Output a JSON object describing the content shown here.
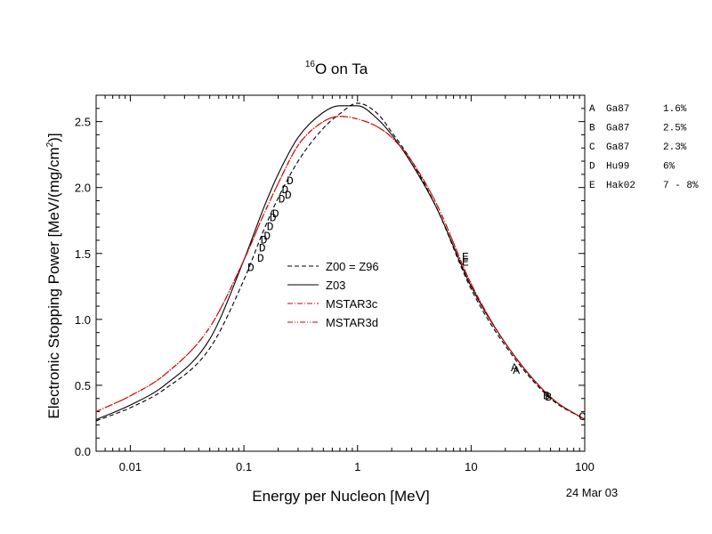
{
  "chart_data": {
    "type": "line",
    "title": {
      "sup": "16",
      "main": "O on Ta"
    },
    "xlabel": "Energy per Nucleon [MeV]",
    "ylabel": {
      "pre": "Electronic Stopping Power [MeV/(mg/cm",
      "sup": "2",
      "post": ")]"
    },
    "x_scale": "log",
    "xlim": [
      0.005,
      100
    ],
    "ylim": [
      0.0,
      2.7
    ],
    "x_ticks": [
      {
        "value": 0.01,
        "label": "0.01"
      },
      {
        "value": 0.1,
        "label": "0.1"
      },
      {
        "value": 1,
        "label": "1"
      },
      {
        "value": 10,
        "label": "10"
      },
      {
        "value": 100,
        "label": "100"
      }
    ],
    "y_ticks": [
      {
        "value": 0.0,
        "label": "0.0"
      },
      {
        "value": 0.5,
        "label": "0.5"
      },
      {
        "value": 1.0,
        "label": "1.0"
      },
      {
        "value": 1.5,
        "label": "1.5"
      },
      {
        "value": 2.0,
        "label": "2.0"
      },
      {
        "value": 2.5,
        "label": "2.5"
      }
    ],
    "date_label": "24 Mar 03",
    "legend": {
      "placement": "center-left",
      "entries": [
        {
          "label": "Z00 = Z96",
          "color": "#000000",
          "dash": "dashed"
        },
        {
          "label": "Z03",
          "color": "#000000",
          "dash": "solid"
        },
        {
          "label": "MSTAR3c",
          "color": "#cc0000",
          "dash": "dash-dot"
        },
        {
          "label": "MSTAR3d",
          "color": "#cc0000",
          "dash": "dash-dot-dot"
        }
      ]
    },
    "series": [
      {
        "name": "Z00 = Z96",
        "color": "#000000",
        "dash": "dashed",
        "x": [
          0.005,
          0.01,
          0.02,
          0.05,
          0.1,
          0.15,
          0.2,
          0.3,
          0.5,
          0.7,
          1.0,
          1.5,
          2,
          3,
          5,
          10,
          20,
          50,
          100
        ],
        "y": [
          0.23,
          0.33,
          0.47,
          0.78,
          1.3,
          1.68,
          1.92,
          2.2,
          2.45,
          2.56,
          2.64,
          2.56,
          2.42,
          2.2,
          1.84,
          1.23,
          0.8,
          0.4,
          0.24
        ]
      },
      {
        "name": "Z03",
        "color": "#000000",
        "dash": "solid",
        "x": [
          0.005,
          0.01,
          0.02,
          0.05,
          0.1,
          0.15,
          0.2,
          0.3,
          0.5,
          0.7,
          1.0,
          1.5,
          2,
          3,
          5,
          10,
          20,
          50,
          100
        ],
        "y": [
          0.24,
          0.35,
          0.5,
          0.85,
          1.45,
          1.85,
          2.1,
          2.38,
          2.57,
          2.62,
          2.62,
          2.52,
          2.4,
          2.18,
          1.84,
          1.25,
          0.82,
          0.41,
          0.24
        ]
      },
      {
        "name": "MSTAR3c",
        "color": "#cc0000",
        "dash": "dash-dot",
        "x": [
          0.005,
          0.01,
          0.02,
          0.05,
          0.1,
          0.15,
          0.2,
          0.3,
          0.5,
          0.7,
          1.0,
          1.5,
          2,
          3,
          5,
          10,
          20,
          50,
          100
        ],
        "y": [
          0.3,
          0.42,
          0.58,
          0.94,
          1.45,
          1.8,
          2.03,
          2.32,
          2.5,
          2.54,
          2.52,
          2.46,
          2.38,
          2.2,
          1.87,
          1.27,
          0.82,
          0.41,
          0.24
        ]
      },
      {
        "name": "MSTAR3d",
        "color": "#cc0000",
        "dash": "dash-dot-dot",
        "x": [
          0.005,
          0.01,
          0.02,
          0.05,
          0.1,
          0.15,
          0.2,
          0.3,
          0.5,
          0.7,
          1.0,
          1.5,
          2,
          3,
          5,
          10,
          20,
          50,
          100
        ],
        "y": [
          0.3,
          0.42,
          0.58,
          0.94,
          1.45,
          1.8,
          2.03,
          2.32,
          2.5,
          2.54,
          2.52,
          2.46,
          2.38,
          2.2,
          1.87,
          1.27,
          0.82,
          0.41,
          0.24
        ]
      }
    ],
    "points": [
      {
        "letter": "A",
        "x": 24.0,
        "y": 0.64
      },
      {
        "letter": "A",
        "x": 25.0,
        "y": 0.62
      },
      {
        "letter": "B",
        "x": 46.0,
        "y": 0.43
      },
      {
        "letter": "B",
        "x": 48.0,
        "y": 0.42
      },
      {
        "letter": "C",
        "x": 95.0,
        "y": 0.27
      },
      {
        "letter": "D",
        "x": 0.115,
        "y": 1.4
      },
      {
        "letter": "D",
        "x": 0.14,
        "y": 1.47
      },
      {
        "letter": "D",
        "x": 0.145,
        "y": 1.55
      },
      {
        "letter": "D",
        "x": 0.15,
        "y": 1.61
      },
      {
        "letter": "D",
        "x": 0.16,
        "y": 1.64
      },
      {
        "letter": "D",
        "x": 0.17,
        "y": 1.71
      },
      {
        "letter": "D",
        "x": 0.18,
        "y": 1.78
      },
      {
        "letter": "D",
        "x": 0.19,
        "y": 1.81
      },
      {
        "letter": "D",
        "x": 0.215,
        "y": 1.92
      },
      {
        "letter": "D",
        "x": 0.23,
        "y": 1.99
      },
      {
        "letter": "D",
        "x": 0.245,
        "y": 1.95
      },
      {
        "letter": "D",
        "x": 0.255,
        "y": 2.06
      },
      {
        "letter": "E",
        "x": 8.9,
        "y": 1.48
      },
      {
        "letter": "E",
        "x": 8.9,
        "y": 1.44
      }
    ],
    "references": [
      {
        "letter": "A",
        "name": "Ga87",
        "uncertainty": "1.6%"
      },
      {
        "letter": "B",
        "name": "Ga87",
        "uncertainty": "2.5%"
      },
      {
        "letter": "C",
        "name": "Ga87",
        "uncertainty": "2.3%"
      },
      {
        "letter": "D",
        "name": "Hu99",
        "uncertainty": "6%"
      },
      {
        "letter": "E",
        "name": "Hak02",
        "uncertainty": "7 - 8%"
      }
    ]
  }
}
